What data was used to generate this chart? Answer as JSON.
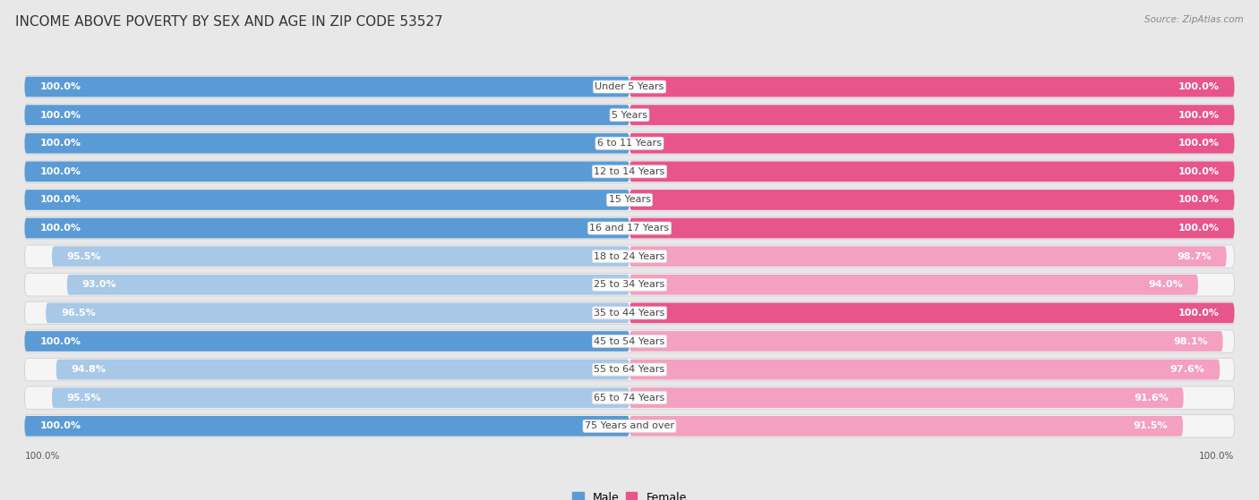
{
  "title": "INCOME ABOVE POVERTY BY SEX AND AGE IN ZIP CODE 53527",
  "source": "Source: ZipAtlas.com",
  "categories": [
    "Under 5 Years",
    "5 Years",
    "6 to 11 Years",
    "12 to 14 Years",
    "15 Years",
    "16 and 17 Years",
    "18 to 24 Years",
    "25 to 34 Years",
    "35 to 44 Years",
    "45 to 54 Years",
    "55 to 64 Years",
    "65 to 74 Years",
    "75 Years and over"
  ],
  "male_values": [
    100.0,
    100.0,
    100.0,
    100.0,
    100.0,
    100.0,
    95.5,
    93.0,
    96.5,
    100.0,
    94.8,
    95.5,
    100.0
  ],
  "female_values": [
    100.0,
    100.0,
    100.0,
    100.0,
    100.0,
    100.0,
    98.7,
    94.0,
    100.0,
    98.1,
    97.6,
    91.6,
    91.5
  ],
  "male_color_full": "#5b9bd5",
  "male_color_partial": "#a8c8e8",
  "female_color_full": "#e8558a",
  "female_color_partial": "#f4a0c0",
  "male_label": "Male",
  "female_label": "Female",
  "bg_color": "#e8e8e8",
  "row_bg_color": "#f5f5f5",
  "title_fontsize": 11,
  "label_fontsize": 8,
  "value_fontsize": 8,
  "bar_bg_color": "#e0e0e0",
  "legend_male_color": "#5b9bd5",
  "legend_female_color": "#e8558a"
}
